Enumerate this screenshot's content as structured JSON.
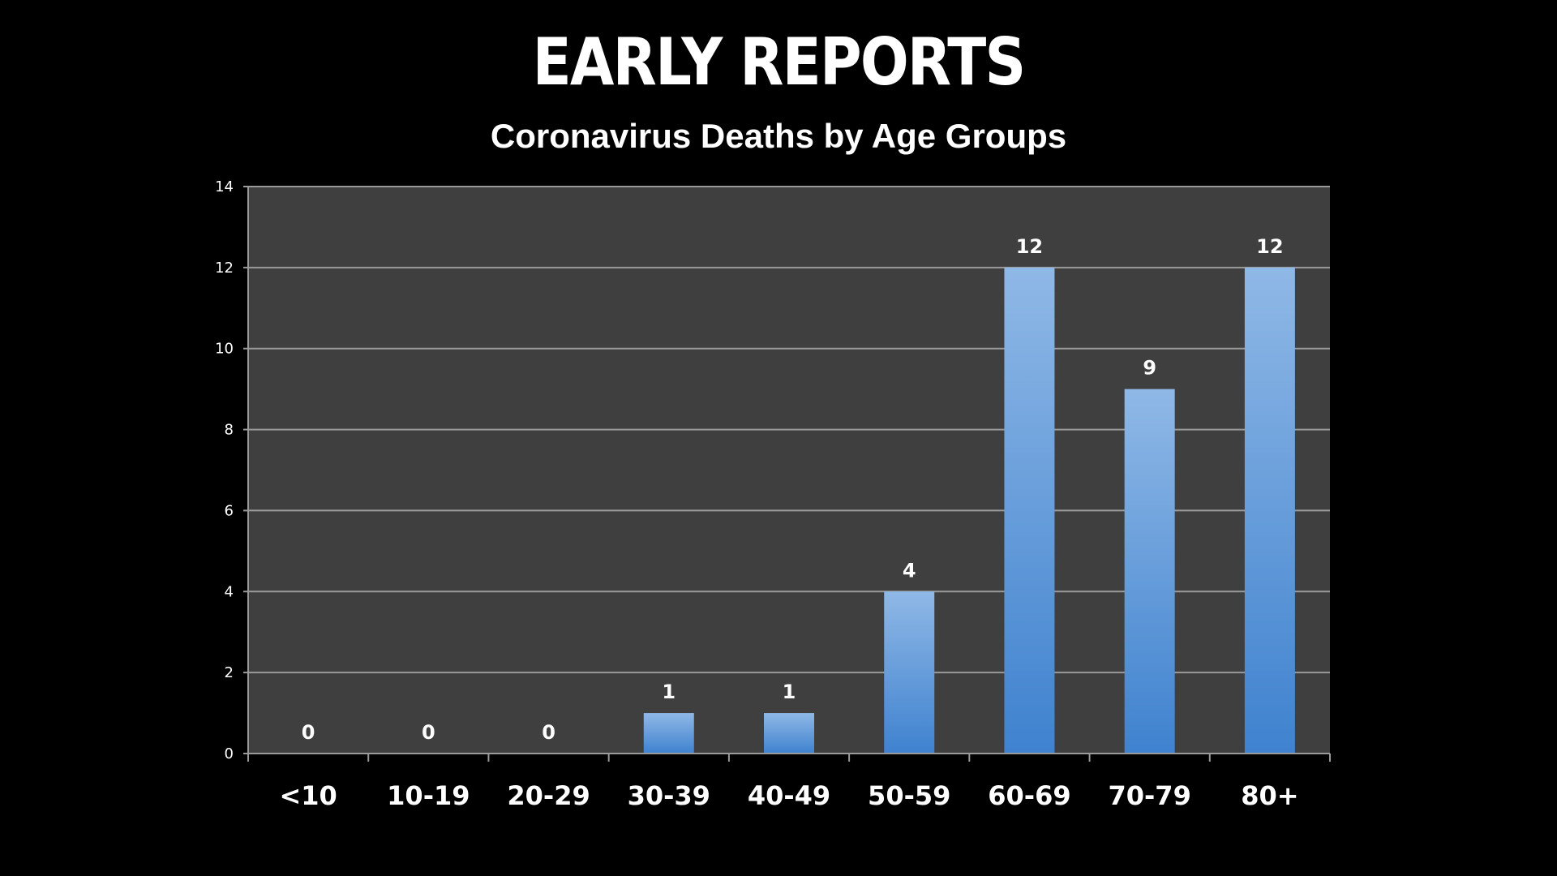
{
  "chart_data": {
    "type": "bar",
    "title": "EARLY REPORTS",
    "subtitle": "Coronavirus Deaths by Age Groups",
    "xlabel": "",
    "ylabel": "",
    "categories": [
      "<10",
      "10-19",
      "20-29",
      "30-39",
      "40-49",
      "50-59",
      "60-69",
      "70-79",
      "80+"
    ],
    "values": [
      0,
      0,
      0,
      1,
      1,
      4,
      12,
      9,
      12
    ],
    "ylim": [
      0,
      14
    ],
    "yticks": [
      "0",
      "2",
      "4",
      "6",
      "8",
      "10",
      "12",
      "14"
    ],
    "grid": true,
    "legend": "none",
    "colors": {
      "background": "#000000",
      "plot_area": "#3f3f3f",
      "bar_top": "#8fb8e6",
      "bar_bottom": "#3f82cf",
      "gridline": "#9a9a9a",
      "text": "#ffffff"
    }
  }
}
